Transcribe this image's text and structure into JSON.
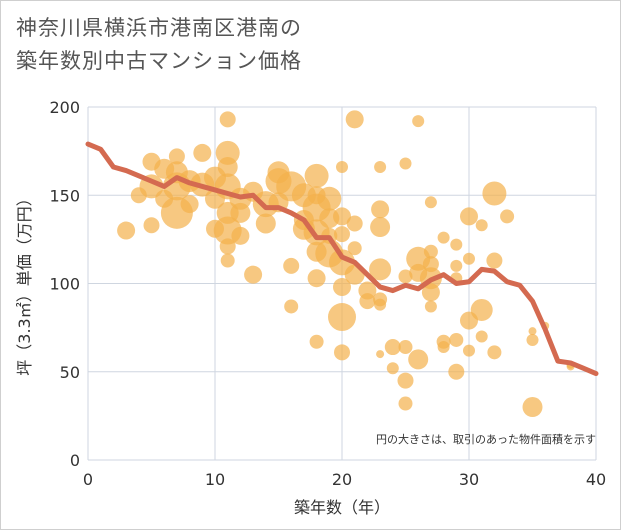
{
  "title": "神奈川県横浜市港南区港南の\n築年数別中古マンション価格",
  "note": "円の大きさは、取引のあった物件面積を示す",
  "chart_data": {
    "type": "scatter",
    "xlabel": "築年数（年）",
    "ylabel": "坪（3.3㎡）単価（万円）",
    "xlim": [
      0,
      40
    ],
    "ylim": [
      0,
      200
    ],
    "xticks": [
      0,
      10,
      20,
      30,
      40
    ],
    "yticks": [
      0,
      50,
      100,
      150,
      200
    ],
    "xtick_labels": [
      "0",
      "10",
      "20",
      "30",
      "40"
    ],
    "ytick_labels": [
      "0",
      "50",
      "100",
      "150",
      "200"
    ],
    "grid": true,
    "colors": {
      "bubble": "#f3b14b",
      "line": "#d46a50",
      "grid": "#cfd6e0"
    },
    "points": [
      {
        "x": 3,
        "y": 130,
        "s": 9
      },
      {
        "x": 4,
        "y": 150,
        "s": 8
      },
      {
        "x": 5,
        "y": 169,
        "s": 9
      },
      {
        "x": 5,
        "y": 155,
        "s": 12
      },
      {
        "x": 5,
        "y": 133,
        "s": 8
      },
      {
        "x": 6,
        "y": 165,
        "s": 10
      },
      {
        "x": 6,
        "y": 148,
        "s": 9
      },
      {
        "x": 7,
        "y": 172,
        "s": 8
      },
      {
        "x": 7,
        "y": 163,
        "s": 11
      },
      {
        "x": 7,
        "y": 155,
        "s": 14
      },
      {
        "x": 7,
        "y": 140,
        "s": 16
      },
      {
        "x": 8,
        "y": 158,
        "s": 11
      },
      {
        "x": 8,
        "y": 145,
        "s": 9
      },
      {
        "x": 9,
        "y": 174,
        "s": 9
      },
      {
        "x": 9,
        "y": 156,
        "s": 12
      },
      {
        "x": 10,
        "y": 160,
        "s": 11
      },
      {
        "x": 10,
        "y": 148,
        "s": 10
      },
      {
        "x": 10,
        "y": 131,
        "s": 9
      },
      {
        "x": 11,
        "y": 193,
        "s": 8
      },
      {
        "x": 11,
        "y": 174,
        "s": 12
      },
      {
        "x": 11,
        "y": 166,
        "s": 10
      },
      {
        "x": 11,
        "y": 155,
        "s": 13
      },
      {
        "x": 11,
        "y": 140,
        "s": 11
      },
      {
        "x": 11,
        "y": 130,
        "s": 14
      },
      {
        "x": 11,
        "y": 121,
        "s": 8
      },
      {
        "x": 11,
        "y": 113,
        "s": 7
      },
      {
        "x": 12,
        "y": 148,
        "s": 11
      },
      {
        "x": 12,
        "y": 140,
        "s": 10
      },
      {
        "x": 12,
        "y": 127,
        "s": 9
      },
      {
        "x": 13,
        "y": 152,
        "s": 10
      },
      {
        "x": 13,
        "y": 105,
        "s": 9
      },
      {
        "x": 14,
        "y": 145,
        "s": 13
      },
      {
        "x": 14,
        "y": 134,
        "s": 10
      },
      {
        "x": 15,
        "y": 163,
        "s": 11
      },
      {
        "x": 15,
        "y": 158,
        "s": 13
      },
      {
        "x": 15,
        "y": 146,
        "s": 10
      },
      {
        "x": 16,
        "y": 155,
        "s": 15
      },
      {
        "x": 16,
        "y": 110,
        "s": 8
      },
      {
        "x": 16,
        "y": 87,
        "s": 7
      },
      {
        "x": 17,
        "y": 150,
        "s": 12
      },
      {
        "x": 17,
        "y": 136,
        "s": 10
      },
      {
        "x": 17,
        "y": 131,
        "s": 11
      },
      {
        "x": 18,
        "y": 161,
        "s": 12
      },
      {
        "x": 18,
        "y": 150,
        "s": 9
      },
      {
        "x": 18,
        "y": 143,
        "s": 14
      },
      {
        "x": 18,
        "y": 129,
        "s": 13
      },
      {
        "x": 18,
        "y": 118,
        "s": 10
      },
      {
        "x": 18,
        "y": 103,
        "s": 9
      },
      {
        "x": 18,
        "y": 67,
        "s": 7
      },
      {
        "x": 19,
        "y": 148,
        "s": 12
      },
      {
        "x": 19,
        "y": 137,
        "s": 10
      },
      {
        "x": 19,
        "y": 127,
        "s": 8
      },
      {
        "x": 19,
        "y": 117,
        "s": 14
      },
      {
        "x": 20,
        "y": 166,
        "s": 6
      },
      {
        "x": 20,
        "y": 138,
        "s": 9
      },
      {
        "x": 20,
        "y": 128,
        "s": 8
      },
      {
        "x": 20,
        "y": 112,
        "s": 13
      },
      {
        "x": 20,
        "y": 98,
        "s": 9
      },
      {
        "x": 20,
        "y": 81,
        "s": 14
      },
      {
        "x": 20,
        "y": 61,
        "s": 8
      },
      {
        "x": 21,
        "y": 193,
        "s": 9
      },
      {
        "x": 21,
        "y": 134,
        "s": 8
      },
      {
        "x": 21,
        "y": 120,
        "s": 7
      },
      {
        "x": 21,
        "y": 105,
        "s": 10
      },
      {
        "x": 22,
        "y": 96,
        "s": 9
      },
      {
        "x": 22,
        "y": 90,
        "s": 8
      },
      {
        "x": 23,
        "y": 166,
        "s": 6
      },
      {
        "x": 23,
        "y": 142,
        "s": 9
      },
      {
        "x": 23,
        "y": 132,
        "s": 10
      },
      {
        "x": 23,
        "y": 108,
        "s": 11
      },
      {
        "x": 23,
        "y": 91,
        "s": 7
      },
      {
        "x": 23,
        "y": 88,
        "s": 6
      },
      {
        "x": 23,
        "y": 60,
        "s": 4
      },
      {
        "x": 24,
        "y": 64,
        "s": 8
      },
      {
        "x": 24,
        "y": 52,
        "s": 6
      },
      {
        "x": 25,
        "y": 168,
        "s": 6
      },
      {
        "x": 25,
        "y": 104,
        "s": 7
      },
      {
        "x": 25,
        "y": 64,
        "s": 7
      },
      {
        "x": 25,
        "y": 45,
        "s": 8
      },
      {
        "x": 25,
        "y": 32,
        "s": 7
      },
      {
        "x": 26,
        "y": 192,
        "s": 6
      },
      {
        "x": 26,
        "y": 114,
        "s": 12
      },
      {
        "x": 26,
        "y": 106,
        "s": 9
      },
      {
        "x": 26,
        "y": 57,
        "s": 10
      },
      {
        "x": 27,
        "y": 146,
        "s": 6
      },
      {
        "x": 27,
        "y": 118,
        "s": 7
      },
      {
        "x": 27,
        "y": 111,
        "s": 8
      },
      {
        "x": 27,
        "y": 103,
        "s": 11
      },
      {
        "x": 27,
        "y": 95,
        "s": 9
      },
      {
        "x": 27,
        "y": 87,
        "s": 6
      },
      {
        "x": 28,
        "y": 126,
        "s": 6
      },
      {
        "x": 28,
        "y": 67,
        "s": 7
      },
      {
        "x": 28,
        "y": 64,
        "s": 6
      },
      {
        "x": 29,
        "y": 122,
        "s": 6
      },
      {
        "x": 29,
        "y": 110,
        "s": 6
      },
      {
        "x": 29,
        "y": 103,
        "s": 6
      },
      {
        "x": 29,
        "y": 68,
        "s": 7
      },
      {
        "x": 29,
        "y": 50,
        "s": 8
      },
      {
        "x": 30,
        "y": 138,
        "s": 9
      },
      {
        "x": 30,
        "y": 114,
        "s": 6
      },
      {
        "x": 30,
        "y": 79,
        "s": 9
      },
      {
        "x": 30,
        "y": 62,
        "s": 6
      },
      {
        "x": 31,
        "y": 133,
        "s": 6
      },
      {
        "x": 31,
        "y": 85,
        "s": 11
      },
      {
        "x": 31,
        "y": 70,
        "s": 6
      },
      {
        "x": 32,
        "y": 151,
        "s": 12
      },
      {
        "x": 32,
        "y": 113,
        "s": 8
      },
      {
        "x": 32,
        "y": 61,
        "s": 7
      },
      {
        "x": 33,
        "y": 138,
        "s": 7
      },
      {
        "x": 35,
        "y": 73,
        "s": 4
      },
      {
        "x": 35,
        "y": 68,
        "s": 6
      },
      {
        "x": 35,
        "y": 30,
        "s": 10
      },
      {
        "x": 36,
        "y": 76,
        "s": 4
      },
      {
        "x": 38,
        "y": 54,
        "s": 4
      },
      {
        "x": 38,
        "y": 53,
        "s": 4
      }
    ],
    "trend": {
      "x": [
        0,
        1,
        2,
        3,
        4,
        5,
        6,
        7,
        8,
        9,
        10,
        11,
        12,
        13,
        14,
        15,
        16,
        17,
        18,
        19,
        20,
        21,
        22,
        23,
        24,
        25,
        26,
        27,
        28,
        29,
        30,
        31,
        32,
        33,
        34,
        35,
        36,
        37,
        38,
        39,
        40
      ],
      "y": [
        179,
        176,
        166,
        164,
        161,
        158,
        155,
        160,
        157,
        155,
        153,
        151,
        149,
        150,
        143,
        143,
        140,
        136,
        126,
        126,
        115,
        112,
        105,
        98,
        96,
        99,
        97,
        102,
        105,
        100,
        101,
        108,
        107,
        101,
        99,
        90,
        74,
        56,
        55,
        52,
        49
      ]
    }
  }
}
